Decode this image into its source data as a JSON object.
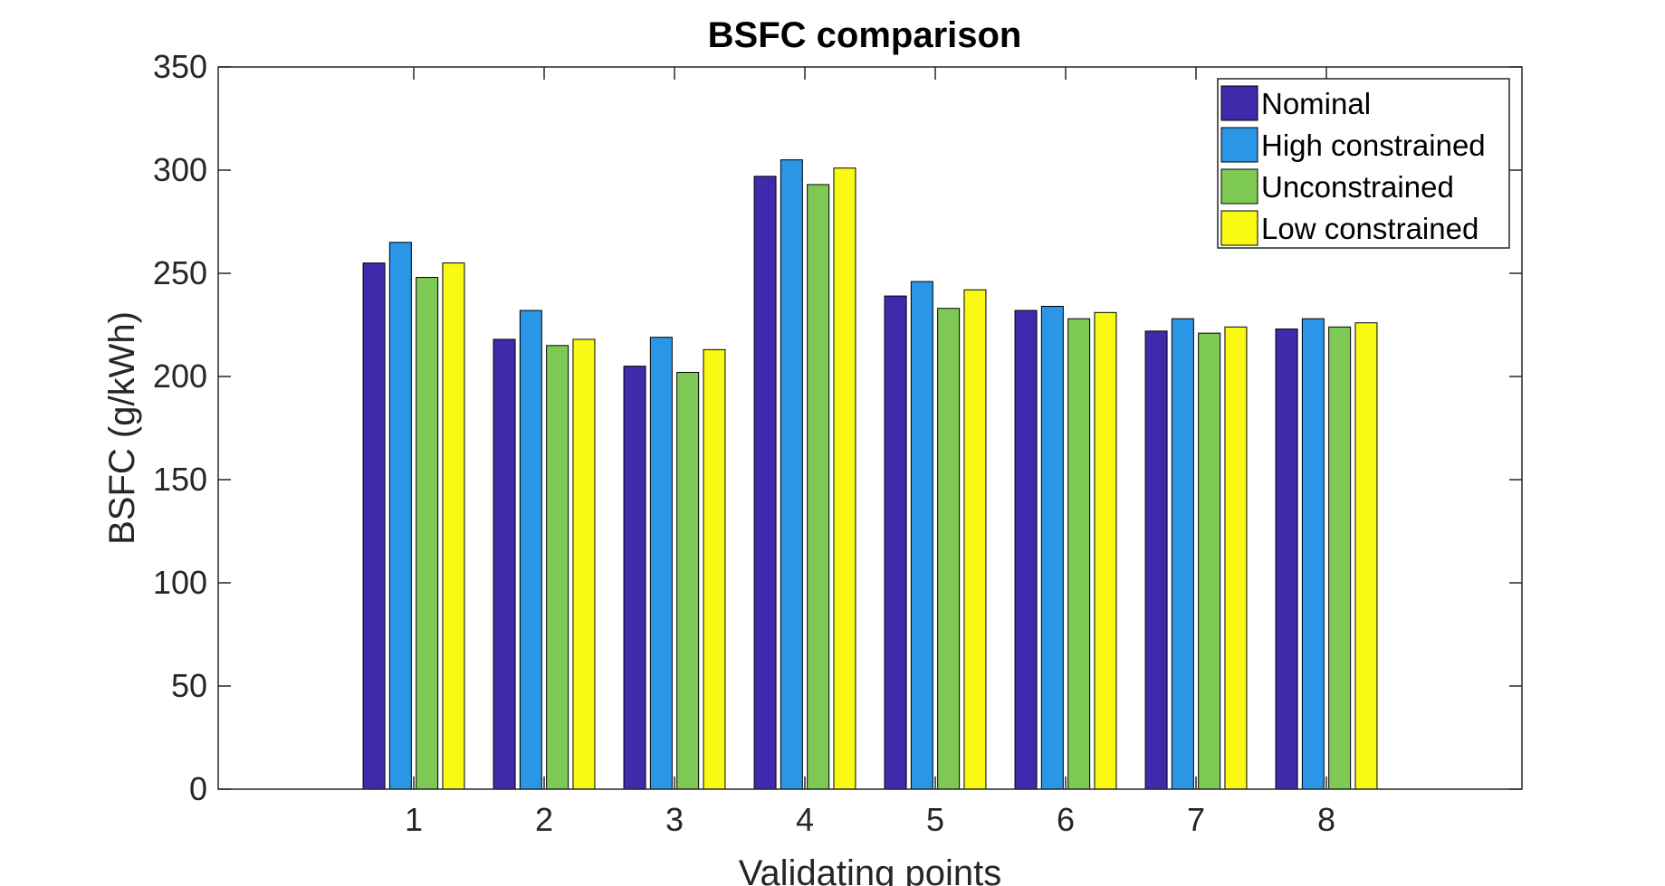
{
  "chart_data": {
    "type": "bar",
    "title": "BSFC comparison",
    "xlabel": "Validating points",
    "ylabel": "BSFC (g/kWh)",
    "categories": [
      "1",
      "2",
      "3",
      "4",
      "5",
      "6",
      "7",
      "8"
    ],
    "ylim": [
      0,
      350
    ],
    "yticks": [
      "0",
      "50",
      "100",
      "150",
      "200",
      "250",
      "300",
      "350"
    ],
    "grid": false,
    "legend_position": "top-right",
    "series": [
      {
        "name": "Nominal",
        "color": "#3f2aab",
        "values": [
          255,
          218,
          205,
          297,
          239,
          232,
          222,
          223
        ]
      },
      {
        "name": "High constrained",
        "color": "#2b95e6",
        "values": [
          265,
          232,
          219,
          305,
          246,
          234,
          228,
          228
        ]
      },
      {
        "name": "Unconstrained",
        "color": "#7ec954",
        "values": [
          248,
          215,
          202,
          293,
          233,
          228,
          221,
          224
        ]
      },
      {
        "name": "Low constrained",
        "color": "#f9f913",
        "values": [
          255,
          218,
          213,
          301,
          242,
          231,
          224,
          226
        ]
      }
    ]
  }
}
